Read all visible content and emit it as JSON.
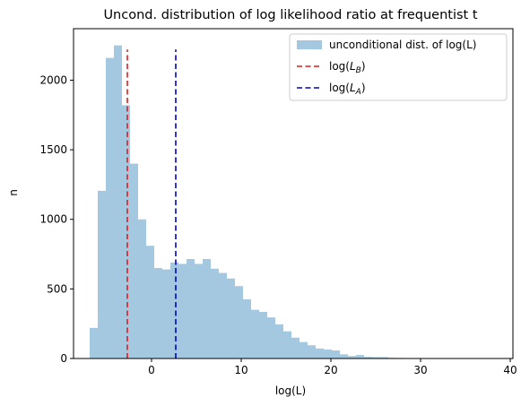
{
  "chart_data": {
    "type": "bar",
    "title": "Uncond. distribution of log likelihood ratio at frequentist  t",
    "xlabel": "log(L)",
    "ylabel": "n",
    "xlim": [
      -8.7,
      40.3
    ],
    "ylim": [
      0,
      2370
    ],
    "xticks": [
      0,
      10,
      20,
      30,
      40
    ],
    "yticks": [
      0,
      500,
      1000,
      1500,
      2000
    ],
    "hist_color": "#a3c8e0",
    "bin_edges": [
      -6.9,
      -6.0,
      -5.1,
      -4.2,
      -3.3,
      -2.4,
      -1.5,
      -0.6,
      0.3,
      1.2,
      2.1,
      3.0,
      3.9,
      4.8,
      5.7,
      6.6,
      7.5,
      8.4,
      9.3,
      10.2,
      11.1,
      12.0,
      12.9,
      13.8,
      14.7,
      15.6,
      16.5,
      17.4,
      18.3,
      19.2,
      20.1,
      21.0,
      21.9,
      22.8,
      23.7,
      24.6,
      25.5,
      26.4,
      27.3,
      28.2,
      29.1,
      30.0,
      30.9,
      31.8,
      32.7,
      33.6,
      34.5,
      35.4,
      36.3,
      37.2,
      38.1,
      39.0
    ],
    "counts": [
      220,
      1205,
      2160,
      2250,
      1820,
      1400,
      1000,
      810,
      650,
      640,
      690,
      680,
      715,
      680,
      715,
      645,
      615,
      575,
      520,
      425,
      350,
      335,
      295,
      245,
      195,
      150,
      118,
      95,
      72,
      65,
      58,
      30,
      18,
      25,
      12,
      10,
      10,
      5,
      4,
      3,
      2,
      2,
      1,
      1,
      1,
      0,
      0,
      0,
      0,
      1,
      0
    ],
    "vlines": [
      {
        "x": -2.7,
        "ymax": 2220,
        "color": "#e31a1c",
        "style": "dashed"
      },
      {
        "x": 2.7,
        "ymax": 2220,
        "color": "#0000cc",
        "style": "dashed"
      }
    ],
    "legend": {
      "placement": "top-right",
      "entries": [
        {
          "label": "unconditional dist. of log(L)",
          "kind": "patch",
          "color": "#a3c8e0"
        },
        {
          "label_main": "log(",
          "label_var": "L",
          "label_sub": "B",
          "label_end": ")",
          "kind": "line",
          "color": "#e31a1c"
        },
        {
          "label_main": "log(",
          "label_var": "L",
          "label_sub": "A",
          "label_end": ")",
          "kind": "line",
          "color": "#0000cc"
        }
      ]
    }
  }
}
